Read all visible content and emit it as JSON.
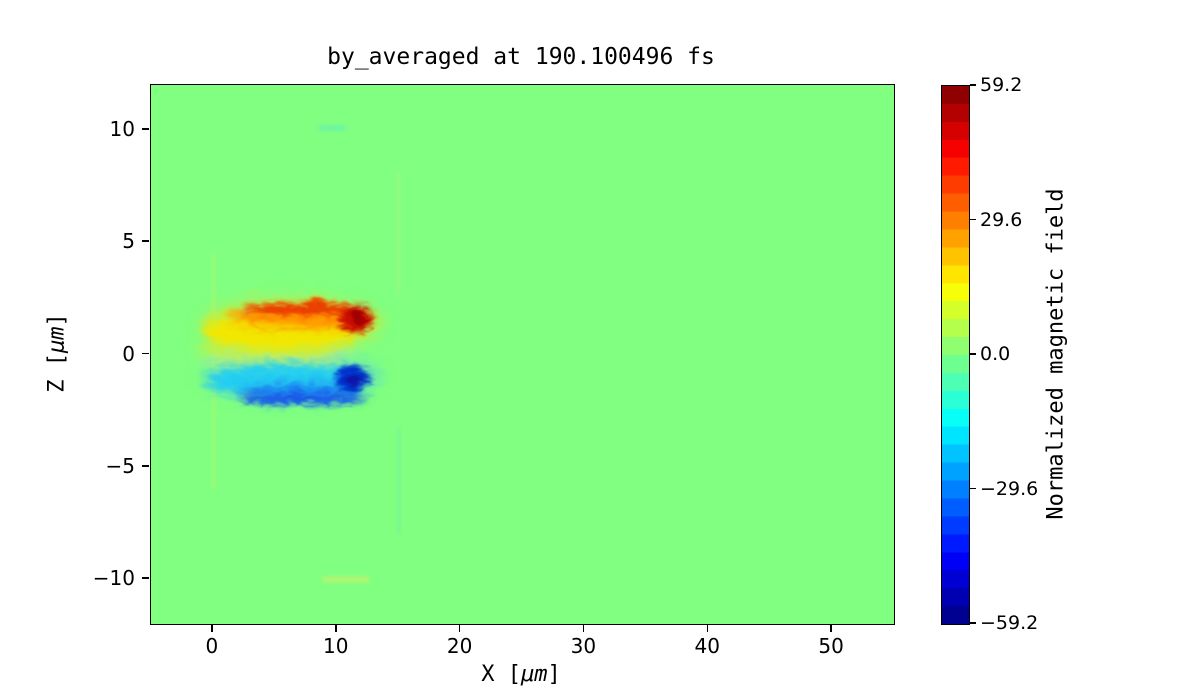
{
  "figure": {
    "title": "by_averaged at 190.100496 fs"
  },
  "axes": {
    "xlabel_pre": "X [",
    "xlabel_mu": "μm",
    "xlabel_post": "]",
    "ylabel_pre": "Z [",
    "ylabel_mu": "μm",
    "ylabel_post": "]",
    "x_tick_labels": [
      "0",
      "10",
      "20",
      "30",
      "40",
      "50"
    ],
    "y_tick_labels": [
      "10",
      "5",
      "0",
      "−5",
      "−10"
    ]
  },
  "colorbar": {
    "label": "Normalized magnetic field",
    "tick_labels": [
      "59.2",
      "29.6",
      "0.0",
      "−29.6",
      "−59.2"
    ],
    "tick_values": [
      59.2,
      29.6,
      0.0,
      -29.6,
      -59.2
    ],
    "vmin": -59.2,
    "vmax": 59.2,
    "segments": 30
  },
  "chart_data": {
    "type": "heatmap",
    "title": "by_averaged at 190.100496 fs",
    "xlabel": "X [μm]",
    "ylabel": "Z [μm]",
    "xlim": [
      -5,
      55
    ],
    "ylim": [
      -12,
      12
    ],
    "x_ticks": [
      0,
      10,
      20,
      30,
      40,
      50
    ],
    "y_ticks": [
      10,
      5,
      0,
      -5,
      -10
    ],
    "colormap": "jet",
    "grid": false,
    "colorbar_label": "Normalized magnetic field",
    "value_range": [
      -59.2,
      59.2
    ],
    "background_value": 0.0,
    "colors": {
      "background_field": "#80ff80",
      "positive_peak": "#8b0000",
      "negative_peak": "#000080"
    },
    "features": [
      {
        "name": "positive-lobe",
        "description": "yellow-orange band with wavy red upper edge, peak dark-red core at right tip",
        "x_range": [
          0,
          13
        ],
        "z_range": [
          0.2,
          2.6
        ],
        "peak_value": 59.2,
        "peak_location": {
          "x": 12,
          "z": 1.3
        }
      },
      {
        "name": "negative-lobe",
        "description": "cyan-blue band with wavy blue lower edge, peak dark-blue core at right tip",
        "x_range": [
          0,
          13
        ],
        "z_range": [
          -2.7,
          -0.2
        ],
        "peak_value": -59.2,
        "peak_location": {
          "x": 12,
          "z": -1.2
        }
      },
      {
        "name": "left-vertical-streak",
        "description": "faint yellow vertical streak",
        "x": 0,
        "z_range": [
          -6.5,
          4.5
        ]
      },
      {
        "name": "right-vertical-streak-upper",
        "description": "faint yellow-green vertical streak",
        "x": 15,
        "z_range": [
          2.7,
          8.2
        ]
      },
      {
        "name": "right-vertical-streak-lower",
        "description": "faint cyan-green vertical streak",
        "x": 15,
        "z_range": [
          -8,
          -3.3
        ]
      },
      {
        "name": "top-dash",
        "description": "tiny cyan horizontal smudge",
        "x_range": [
          8.5,
          10.7
        ],
        "z": 10.1
      },
      {
        "name": "bottom-dash",
        "description": "faint yellow horizontal smudge",
        "x_range": [
          8.8,
          12.5
        ],
        "z": -10.0
      }
    ]
  }
}
